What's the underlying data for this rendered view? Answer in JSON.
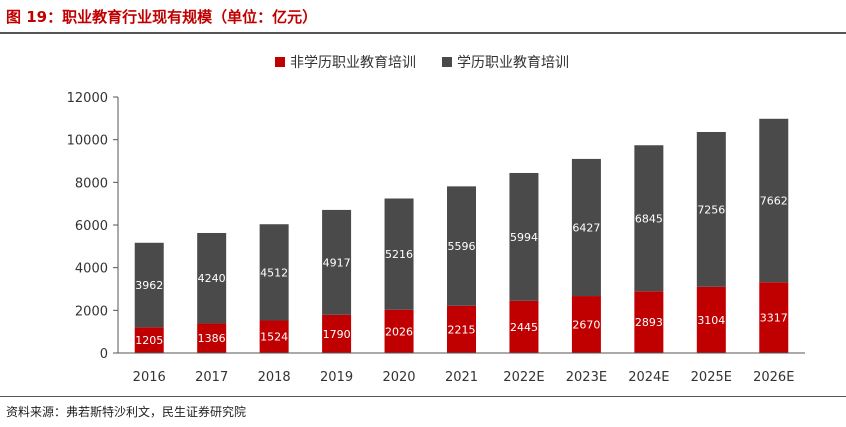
{
  "title": "图 19：职业教育行业现有规模（单位：亿元）",
  "source": "资料来源：弗若斯特沙利文，民生证券研究院",
  "chart_data": {
    "type": "bar",
    "stacked": true,
    "title": "图 19：职业教育行业现有规模（单位：亿元）",
    "categories": [
      "2016",
      "2017",
      "2018",
      "2019",
      "2020",
      "2021",
      "2022E",
      "2023E",
      "2024E",
      "2025E",
      "2026E"
    ],
    "series": [
      {
        "name": "非学历职业教育培训",
        "color": "#c00000",
        "values": [
          1205,
          1386,
          1524,
          1790,
          2026,
          2215,
          2445,
          2670,
          2893,
          3104,
          3317
        ]
      },
      {
        "name": "学历职业教育培训",
        "color": "#4a4a4a",
        "values": [
          3962,
          4240,
          4512,
          4917,
          5216,
          5596,
          5994,
          6427,
          6845,
          7256,
          7662
        ]
      }
    ],
    "yticks": [
      0,
      2000,
      4000,
      6000,
      8000,
      10000,
      12000
    ],
    "ylim": [
      0,
      12000
    ],
    "legend": "top-center",
    "grid": false
  }
}
